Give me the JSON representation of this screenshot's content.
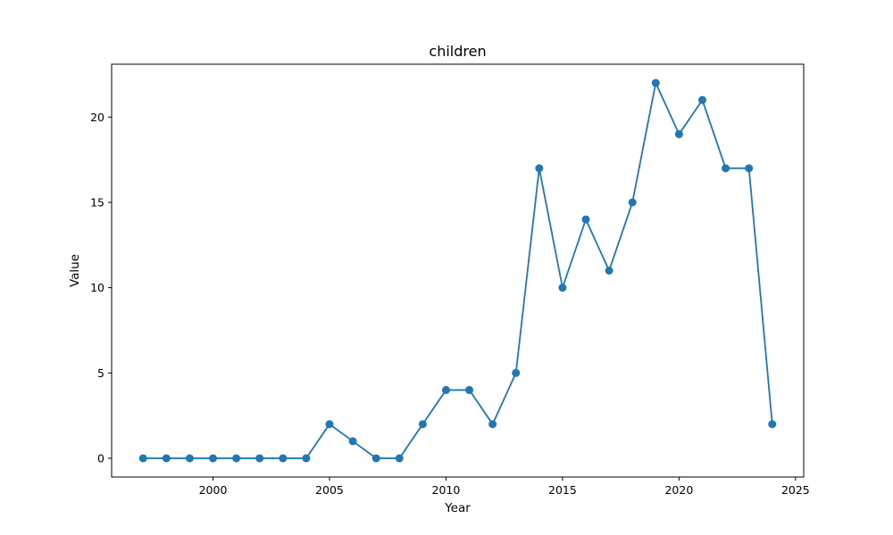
{
  "chart_data": {
    "type": "line",
    "title": "children",
    "xlabel": "Year",
    "ylabel": "Value",
    "xlim": [
      1995.65,
      2025.35
    ],
    "ylim": [
      -1.1,
      23.1
    ],
    "x_ticks": [
      2000,
      2005,
      2010,
      2015,
      2020,
      2025
    ],
    "y_ticks": [
      0,
      5,
      10,
      15,
      20
    ],
    "grid": false,
    "legend": "none",
    "series": [
      {
        "color": "#1f77b4",
        "marker": "circle",
        "x": [
          1997,
          1998,
          1999,
          2000,
          2001,
          2002,
          2003,
          2004,
          2005,
          2006,
          2007,
          2008,
          2009,
          2010,
          2011,
          2012,
          2013,
          2014,
          2015,
          2016,
          2017,
          2018,
          2019,
          2020,
          2021,
          2022,
          2023,
          2024
        ],
        "y": [
          0,
          0,
          0,
          0,
          0,
          0,
          0,
          0,
          2,
          1,
          0,
          0,
          2,
          4,
          4,
          2,
          5,
          17,
          10,
          14,
          11,
          15,
          22,
          19,
          21,
          17,
          17,
          2
        ]
      }
    ]
  }
}
